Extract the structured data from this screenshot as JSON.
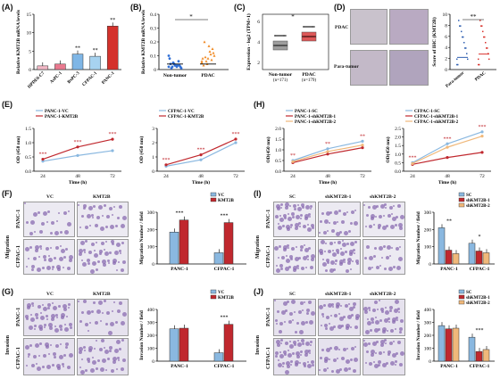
{
  "panels": {
    "A": {
      "label": "(A)",
      "ylabel": "Relative KMT2B mRNA levels",
      "categories": [
        "HPDE6-C7",
        "AsPC-1",
        "BxPC-3",
        "CFPAC-1",
        "PANC-1"
      ],
      "values": [
        1.0,
        1.5,
        4.2,
        3.6,
        11.8
      ],
      "colors": [
        "#f2b8c6",
        "#e9798f",
        "#7fb6e6",
        "#a7d3f0",
        "#d4322c"
      ],
      "sig": [
        "",
        "",
        "**",
        "**",
        "**"
      ],
      "ylim": [
        0,
        15
      ],
      "yticks": [
        "0",
        "5",
        "10",
        "15"
      ]
    },
    "B": {
      "label": "(B)",
      "ylabel": "Relative KMT2B mRNA levels",
      "groups": [
        "Non-tumor",
        "PDAC"
      ],
      "sig": "*",
      "yticks": [
        "0",
        "0.1",
        "0.2",
        "0.3",
        "0.4"
      ]
    },
    "C": {
      "label": "(C)",
      "ylabel": "Expression - log2 (TPM+1)",
      "groups": [
        "Non-tumor\n(n=171)",
        "PDAC\n(n=179)"
      ],
      "g1": "Non-tumor",
      "g1n": "(n=171)",
      "g2": "PDAC",
      "g2n": "(n=179)",
      "sig": "*",
      "yticks": [
        "2",
        "4",
        "6"
      ]
    },
    "D": {
      "label": "(D)",
      "img1": "PDAC",
      "img2": "Para-tumor",
      "ylabel": "Score of IHC (KMT2B)",
      "groups": [
        "Para-tumor",
        "PDAC"
      ],
      "sig": "**",
      "yticks": [
        "0",
        "2",
        "4",
        "6",
        "8",
        "10"
      ]
    },
    "E": {
      "label": "(E)",
      "left": {
        "legend": [
          "PANC-1-VC",
          "PANC-1-KMT2B"
        ],
        "ylabel": "OD (450 nm)",
        "xlabel": "Time (h)",
        "x": [
          "24",
          "48",
          "72"
        ],
        "series": [
          {
            "name": "PANC-1-VC",
            "values": [
              0.35,
              0.55,
              0.72
            ],
            "color": "#8ab8e0"
          },
          {
            "name": "PANC-1-KMT2B",
            "values": [
              0.42,
              0.85,
              1.12
            ],
            "color": "#c0282e"
          }
        ],
        "sig": [
          "***",
          "***",
          "***"
        ],
        "yticks": [
          "0.0",
          "0.5",
          "1.0",
          "1.5"
        ],
        "ylim": [
          0,
          1.5
        ]
      },
      "right": {
        "legend": [
          "CFPAC-1-VC",
          "CFPAC-1-KMT2B"
        ],
        "ylabel": "OD (450 nm)",
        "xlabel": "Time (h)",
        "x": [
          "24",
          "48",
          "72"
        ],
        "series": [
          {
            "name": "CFPAC-1-VC",
            "values": [
              0.35,
              0.8,
              2.0
            ],
            "color": "#8ab8e0"
          },
          {
            "name": "CFPAC-1-KMT2B",
            "values": [
              0.45,
              1.15,
              2.25
            ],
            "color": "#c0282e"
          }
        ],
        "sig": [
          "***",
          "***",
          "***"
        ],
        "yticks": [
          "0",
          "1",
          "2",
          "3"
        ],
        "ylim": [
          0,
          3
        ]
      }
    },
    "H": {
      "label": "(H)",
      "left": {
        "legend": [
          "PANC-1-SC",
          "PANC-1-shKMT2B-1",
          "PANC-1-shKMT2B-2"
        ],
        "ylabel": "OD(450 nm)",
        "xlabel": "Time (h)",
        "x": [
          "24",
          "48",
          "72"
        ],
        "series": [
          {
            "name": "PANC-1-SC",
            "values": [
              0.5,
              1.05,
              1.4
            ],
            "color": "#8ab8e0"
          },
          {
            "name": "PANC-1-shKMT2B-1",
            "values": [
              0.4,
              0.8,
              1.1
            ],
            "color": "#c0282e"
          },
          {
            "name": "PANC-1-shKMT2B-2",
            "values": [
              0.45,
              0.92,
              1.22
            ],
            "color": "#f0b87a"
          }
        ],
        "sig": [
          "**",
          "**",
          "**"
        ],
        "yticks": [
          "0.0",
          "0.5",
          "1.0",
          "1.5",
          "2.0"
        ],
        "ylim": [
          0,
          2
        ]
      },
      "right": {
        "legend": [
          "CFPAC-1-SC",
          "CFPAC-1-shKMT2B-1",
          "CFPAC-1-shKMT2B-2"
        ],
        "ylabel": "OD(450 nm)",
        "xlabel": "Time (h)",
        "x": [
          "24",
          "48",
          "72"
        ],
        "series": [
          {
            "name": "CFPAC-1-SC",
            "values": [
              0.5,
              1.6,
              2.3
            ],
            "color": "#8ab8e0"
          },
          {
            "name": "CFPAC-1-shKMT2B-1",
            "values": [
              0.4,
              0.8,
              1.1
            ],
            "color": "#c0282e"
          },
          {
            "name": "CFPAC-1-shKMT2B-2",
            "values": [
              0.45,
              1.4,
              2.05
            ],
            "color": "#f0b87a"
          }
        ],
        "sig": [
          "***",
          "***",
          "***"
        ],
        "yticks": [
          "0.0",
          "0.5",
          "1.0",
          "1.5",
          "2.0",
          "2.5"
        ],
        "ylim": [
          0,
          2.5
        ]
      }
    },
    "F": {
      "label": "(F)",
      "col1": "VC",
      "col2": "KMT2B",
      "row1": "PANC-1",
      "row2": "CFPAC-1",
      "side": "Migration",
      "legend": [
        "VC",
        "KMT2B"
      ],
      "ylabel": "Migration Number / field",
      "categories": [
        "PANC-1",
        "CFPAC-1"
      ],
      "series": [
        {
          "name": "VC",
          "values": [
            185,
            65
          ],
          "color": "#8ab8e0"
        },
        {
          "name": "KMT2B",
          "values": [
            255,
            240
          ],
          "color": "#c0282e"
        }
      ],
      "sig": [
        "***",
        "***"
      ],
      "yticks": [
        "0",
        "100",
        "200",
        "300"
      ],
      "ylim": [
        0,
        300
      ]
    },
    "G": {
      "label": "(G)",
      "col1": "VC",
      "col2": "KMT2B",
      "row1": "PANC-1",
      "row2": "CFPAC-1",
      "side": "Invasion",
      "legend": [
        "VC",
        "KMT2B"
      ],
      "ylabel": "Invasion Number / field",
      "categories": [
        "PANC-1",
        "CFPAC-1"
      ],
      "series": [
        {
          "name": "VC",
          "values": [
            250,
            65
          ],
          "color": "#8ab8e0"
        },
        {
          "name": "KMT2B",
          "values": [
            255,
            285
          ],
          "color": "#c0282e"
        }
      ],
      "sig": [
        "",
        "***"
      ],
      "yticks": [
        "0",
        "100",
        "200",
        "300",
        "400"
      ],
      "ylim": [
        0,
        400
      ]
    },
    "I": {
      "label": "(I)",
      "col1": "SC",
      "col2": "shKMT2B-1",
      "col3": "shKMT2B-2",
      "row1": "PANC-1",
      "row2": "CFPAC-1",
      "side": "Migration",
      "legend": [
        "SC",
        "shKMT2B-1",
        "shKMT2B-2"
      ],
      "ylabel": "Migration Number / field",
      "categories": [
        "PANC-1",
        "CFPAC-1"
      ],
      "series": [
        {
          "name": "SC",
          "values": [
            210,
            120
          ],
          "color": "#8ab8e0"
        },
        {
          "name": "shKMT2B-1",
          "values": [
            80,
            75
          ],
          "color": "#c0282e"
        },
        {
          "name": "shKMT2B-2",
          "values": [
            60,
            65
          ],
          "color": "#f0b87a"
        }
      ],
      "sig": [
        "**",
        "*"
      ],
      "yticks": [
        "0",
        "100",
        "200",
        "300"
      ],
      "ylim": [
        0,
        300
      ]
    },
    "J": {
      "label": "(J)",
      "col1": "SC",
      "col2": "shKMT2B-1",
      "col3": "shKMT2B-2",
      "row1": "PANC-1",
      "row2": "CFPAC-1",
      "side": "Invasion",
      "legend": [
        "SC",
        "shKMT2B-1",
        "shKMT2B-2"
      ],
      "ylabel": "Invasion Number / field",
      "categories": [
        "PANC-1",
        "CFPAC-1"
      ],
      "series": [
        {
          "name": "SC",
          "values": [
            275,
            185
          ],
          "color": "#8ab8e0"
        },
        {
          "name": "shKMT2B-1",
          "values": [
            250,
            75
          ],
          "color": "#c0282e"
        },
        {
          "name": "shKMT2B-2",
          "values": [
            255,
            90
          ],
          "color": "#f0b87a"
        }
      ],
      "sig": [
        "",
        "***"
      ],
      "yticks": [
        "0",
        "100",
        "200",
        "300",
        "400"
      ],
      "ylim": [
        0,
        400
      ]
    }
  },
  "chart_data": [
    {
      "type": "bar",
      "panel": "A",
      "categories": [
        "HPDE6-C7",
        "AsPC-1",
        "BxPC-3",
        "CFPAC-1",
        "PANC-1"
      ],
      "values": [
        1.0,
        1.5,
        4.2,
        3.6,
        11.8
      ],
      "ylabel": "Relative KMT2B mRNA levels",
      "ylim": [
        0,
        15
      ]
    },
    {
      "type": "line",
      "panel": "E-left",
      "x": [
        24,
        48,
        72
      ],
      "series": [
        {
          "name": "PANC-1-VC",
          "values": [
            0.35,
            0.55,
            0.72
          ]
        },
        {
          "name": "PANC-1-KMT2B",
          "values": [
            0.42,
            0.85,
            1.12
          ]
        }
      ],
      "xlabel": "Time (h)",
      "ylabel": "OD (450 nm)"
    },
    {
      "type": "line",
      "panel": "E-right",
      "x": [
        24,
        48,
        72
      ],
      "series": [
        {
          "name": "CFPAC-1-VC",
          "values": [
            0.35,
            0.8,
            2.0
          ]
        },
        {
          "name": "CFPAC-1-KMT2B",
          "values": [
            0.45,
            1.15,
            2.25
          ]
        }
      ],
      "xlabel": "Time (h)",
      "ylabel": "OD (450 nm)"
    },
    {
      "type": "line",
      "panel": "H-left",
      "x": [
        24,
        48,
        72
      ],
      "series": [
        {
          "name": "PANC-1-SC",
          "values": [
            0.5,
            1.05,
            1.4
          ]
        },
        {
          "name": "PANC-1-shKMT2B-1",
          "values": [
            0.4,
            0.8,
            1.1
          ]
        },
        {
          "name": "PANC-1-shKMT2B-2",
          "values": [
            0.45,
            0.92,
            1.22
          ]
        }
      ],
      "xlabel": "Time (h)",
      "ylabel": "OD(450 nm)"
    },
    {
      "type": "line",
      "panel": "H-right",
      "x": [
        24,
        48,
        72
      ],
      "series": [
        {
          "name": "CFPAC-1-SC",
          "values": [
            0.5,
            1.6,
            2.3
          ]
        },
        {
          "name": "CFPAC-1-shKMT2B-1",
          "values": [
            0.4,
            0.8,
            1.1
          ]
        },
        {
          "name": "CFPAC-1-shKMT2B-2",
          "values": [
            0.45,
            1.4,
            2.05
          ]
        }
      ],
      "xlabel": "Time (h)",
      "ylabel": "OD(450 nm)"
    },
    {
      "type": "bar",
      "panel": "F",
      "categories": [
        "PANC-1",
        "CFPAC-1"
      ],
      "series": [
        {
          "name": "VC",
          "values": [
            185,
            65
          ]
        },
        {
          "name": "KMT2B",
          "values": [
            255,
            240
          ]
        }
      ],
      "ylabel": "Migration Number / field"
    },
    {
      "type": "bar",
      "panel": "G",
      "categories": [
        "PANC-1",
        "CFPAC-1"
      ],
      "series": [
        {
          "name": "VC",
          "values": [
            250,
            65
          ]
        },
        {
          "name": "KMT2B",
          "values": [
            255,
            285
          ]
        }
      ],
      "ylabel": "Invasion Number / field"
    },
    {
      "type": "bar",
      "panel": "I",
      "categories": [
        "PANC-1",
        "CFPAC-1"
      ],
      "series": [
        {
          "name": "SC",
          "values": [
            210,
            120
          ]
        },
        {
          "name": "shKMT2B-1",
          "values": [
            80,
            75
          ]
        },
        {
          "name": "shKMT2B-2",
          "values": [
            60,
            65
          ]
        }
      ],
      "ylabel": "Migration Number / field"
    },
    {
      "type": "bar",
      "panel": "J",
      "categories": [
        "PANC-1",
        "CFPAC-1"
      ],
      "series": [
        {
          "name": "SC",
          "values": [
            275,
            185
          ]
        },
        {
          "name": "shKMT2B-1",
          "values": [
            250,
            75
          ]
        },
        {
          "name": "shKMT2B-2",
          "values": [
            255,
            90
          ]
        }
      ],
      "ylabel": "Invasion Number / field"
    }
  ]
}
